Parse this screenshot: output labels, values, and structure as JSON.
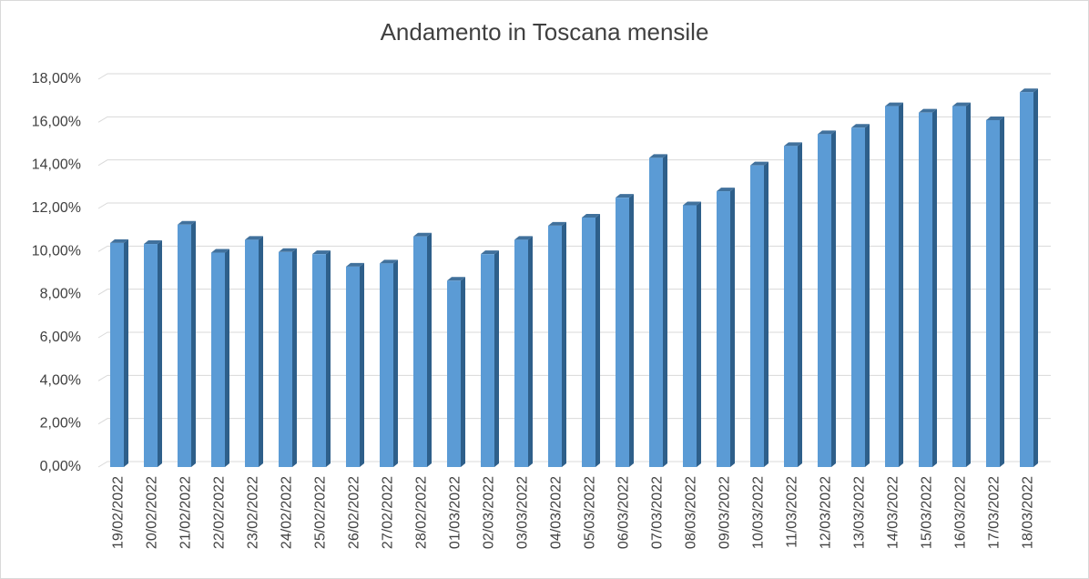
{
  "chart_data": {
    "type": "bar",
    "title": "Andamento in Toscana mensile",
    "xlabel": "",
    "ylabel": "",
    "ylim": [
      0,
      0.18
    ],
    "ytick_step": 0.02,
    "ytick_labels": [
      "0,00%",
      "2,00%",
      "4,00%",
      "6,00%",
      "8,00%",
      "10,00%",
      "12,00%",
      "14,00%",
      "16,00%",
      "18,00%"
    ],
    "grid": true,
    "legend": "none",
    "bar_color": "#5b9bd5",
    "bar_side_color": "#2e5f8a",
    "bar_top_color": "#41719c",
    "grid_color": "#d9d9d9",
    "categories": [
      "19/02/2022",
      "20/02/2022",
      "21/02/2022",
      "22/02/2022",
      "23/02/2022",
      "24/02/2022",
      "25/02/2022",
      "26/02/2022",
      "27/02/2022",
      "28/02/2022",
      "01/03/2022",
      "02/03/2022",
      "03/03/2022",
      "04/03/2022",
      "05/03/2022",
      "06/03/2022",
      "07/03/2022",
      "08/03/2022",
      "09/03/2022",
      "10/03/2022",
      "11/03/2022",
      "12/03/2022",
      "13/03/2022",
      "14/03/2022",
      "15/03/2022",
      "16/03/2022",
      "17/03/2022",
      "18/03/2022"
    ],
    "values": [
      0.104,
      0.1035,
      0.1125,
      0.0995,
      0.1055,
      0.0998,
      0.0988,
      0.093,
      0.0945,
      0.107,
      0.0865,
      0.0988,
      0.1055,
      0.112,
      0.1158,
      0.125,
      0.1435,
      0.1215,
      0.128,
      0.14,
      0.149,
      0.1545,
      0.1575,
      0.1675,
      0.1645,
      0.1675,
      0.161,
      0.174
    ]
  }
}
